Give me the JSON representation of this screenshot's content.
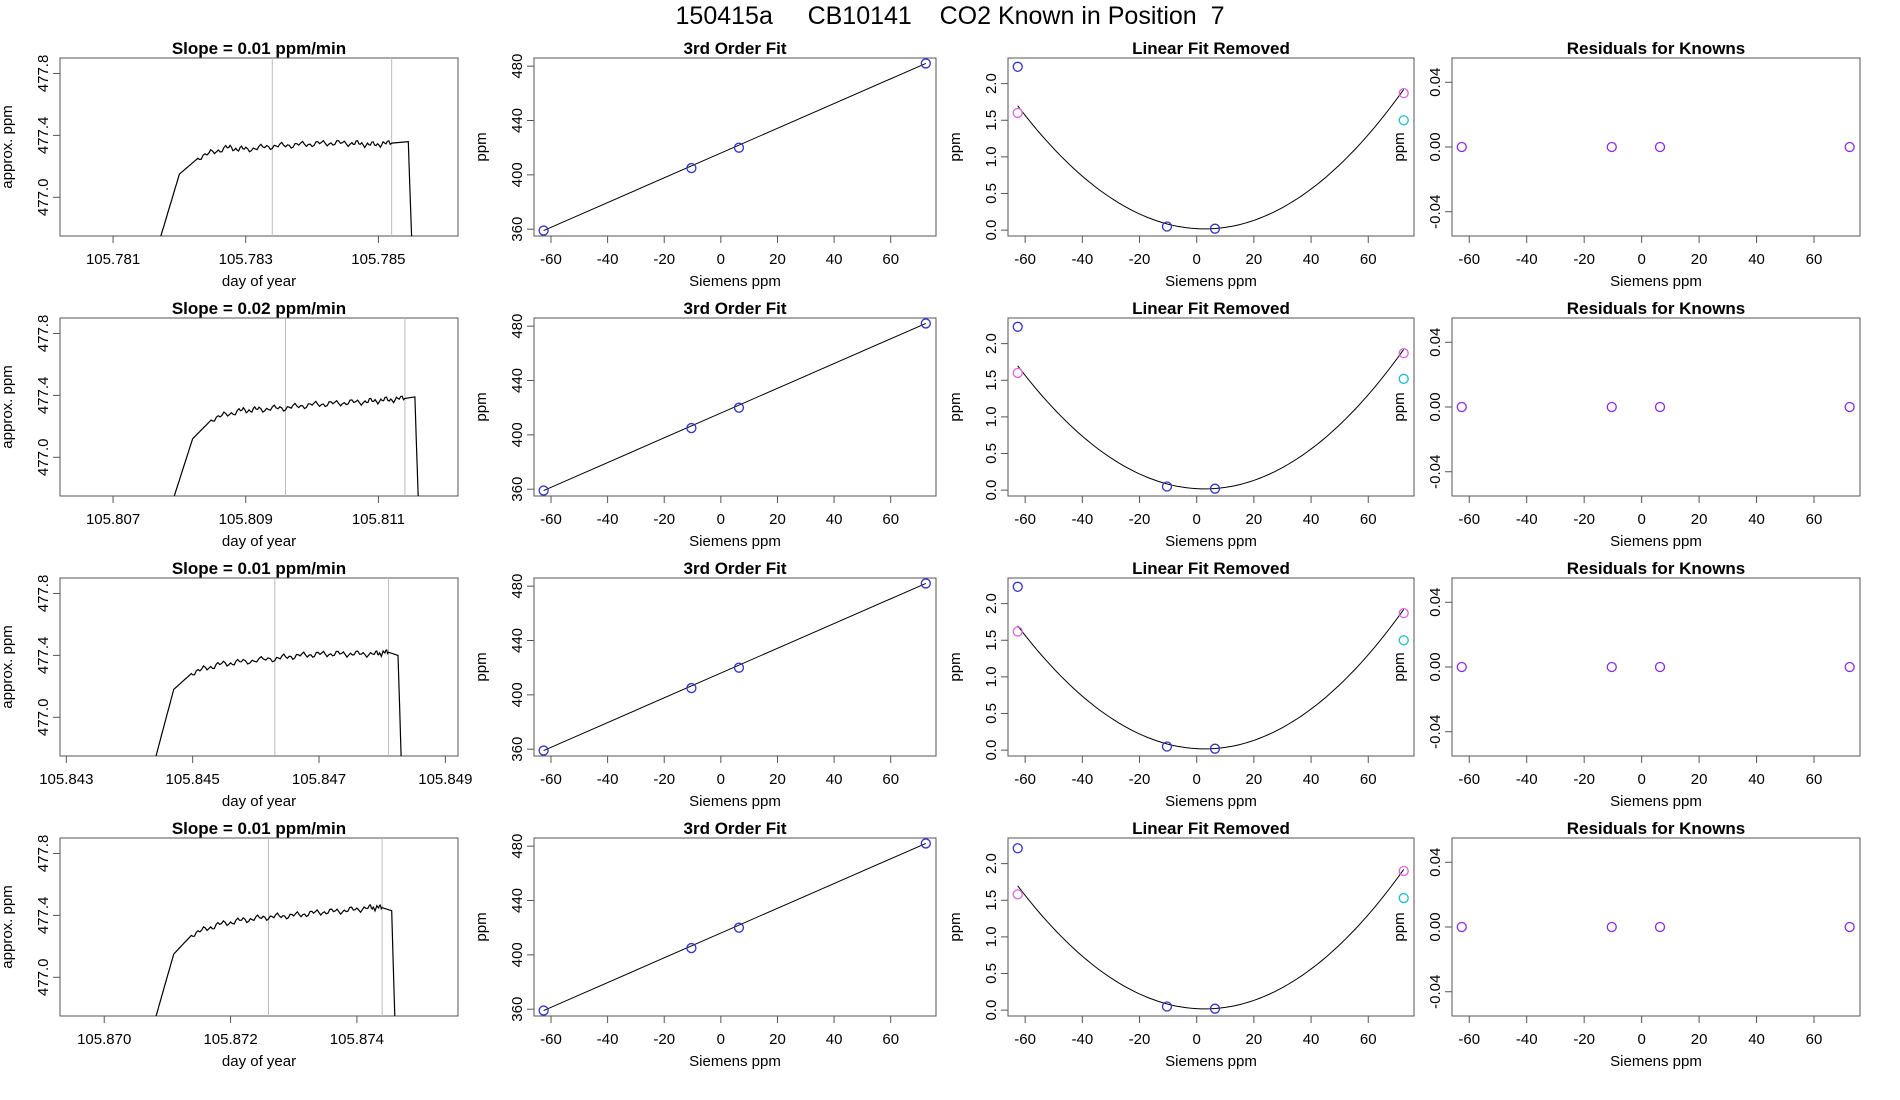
{
  "page_title": "150415a     CB10141    CO2 Known in Position  7",
  "colors": {
    "frame": "#555555",
    "trace": "#000000",
    "marker_blue": "#3333cc",
    "marker_magenta": "#dd66dd",
    "marker_cyan": "#22bbcc",
    "marker_purple": "#8a2be2",
    "gridline": "#bbbbbb"
  },
  "chart_data": [
    {
      "row": 1,
      "type": "line",
      "title": "Slope =  0.01  ppm/min",
      "xlabel": "day of year",
      "ylabel": "approx. ppm",
      "x_ticks": [
        "105.781",
        "105.783",
        "105.785"
      ],
      "y_ticks": [
        "477.0",
        "477.4",
        "477.8"
      ],
      "xlim": [
        105.7802,
        105.7862
      ],
      "ylim": [
        476.75,
        477.9
      ],
      "vlines": [
        105.7834,
        105.7852
      ],
      "series": [
        {
          "x": [
            105.7817,
            105.782,
            105.7823,
            105.7827,
            105.783,
            105.7834,
            105.7838,
            105.7842,
            105.7846,
            105.7849,
            105.7852,
            105.78545,
            105.7855
          ],
          "y": [
            476.72,
            477.15,
            477.26,
            477.32,
            477.31,
            477.33,
            477.34,
            477.35,
            477.35,
            477.34,
            477.35,
            477.36,
            476.75
          ]
        }
      ]
    },
    {
      "row": 1,
      "type": "scatter",
      "title": "3rd Order Fit",
      "xlabel": "Siemens ppm",
      "ylabel": "ppm",
      "x_ticks": [
        "-60",
        "-40",
        "-20",
        "0",
        "20",
        "40",
        "60"
      ],
      "y_ticks": [
        "360",
        "400",
        "440",
        "480"
      ],
      "xlim": [
        -66,
        76
      ],
      "ylim": [
        355,
        486
      ],
      "points": [
        {
          "x": -62.6,
          "y": 359
        },
        {
          "x": -10.4,
          "y": 405
        },
        {
          "x": 6.4,
          "y": 420
        },
        {
          "x": 72.4,
          "y": 482
        }
      ],
      "line": [
        {
          "x": -62.6,
          "y": 359
        },
        {
          "x": 72.4,
          "y": 482
        }
      ]
    },
    {
      "row": 1,
      "type": "scatter",
      "title": "Linear Fit Removed",
      "xlabel": "Siemens ppm",
      "ylabel": "ppm",
      "x_ticks": [
        "-60",
        "-40",
        "-20",
        "0",
        "20",
        "40",
        "60"
      ],
      "y_ticks": [
        "0.0",
        "0.5",
        "1.0",
        "1.5",
        "2.0"
      ],
      "xlim": [
        -66,
        76
      ],
      "ylim": [
        -0.08,
        2.35
      ],
      "points": [
        {
          "x": -62.6,
          "y": 2.23,
          "c": "marker_blue"
        },
        {
          "x": -62.6,
          "y": 1.6,
          "c": "marker_magenta"
        },
        {
          "x": -10.4,
          "y": 0.05,
          "c": "marker_blue"
        },
        {
          "x": 6.4,
          "y": 0.02,
          "c": "marker_blue"
        },
        {
          "x": 72.4,
          "y": 1.87,
          "c": "marker_magenta"
        },
        {
          "x": 72.4,
          "y": 1.5,
          "c": "marker_cyan"
        }
      ],
      "curve": {
        "a": 0.000393,
        "b": -0.0022,
        "c": 0.02,
        "from": -62.6,
        "to": 72.4
      }
    },
    {
      "row": 1,
      "type": "scatter",
      "title": "Residuals for Knowns",
      "xlabel": "Siemens ppm",
      "ylabel": "ppm",
      "x_ticks": [
        "-60",
        "-40",
        "-20",
        "0",
        "20",
        "40",
        "60"
      ],
      "y_ticks": [
        "-0.04",
        "0.00",
        "0.04"
      ],
      "xlim": [
        -66,
        76
      ],
      "ylim": [
        -0.055,
        0.055
      ],
      "points": [
        {
          "x": -62.6,
          "y": 0
        },
        {
          "x": -10.4,
          "y": 0
        },
        {
          "x": 6.4,
          "y": 0
        },
        {
          "x": 72.4,
          "y": 0
        }
      ]
    },
    {
      "row": 2,
      "type": "line",
      "title": "Slope =  0.02  ppm/min",
      "xlabel": "day of year",
      "ylabel": "approx. ppm",
      "x_ticks": [
        "105.807",
        "105.809",
        "105.811"
      ],
      "y_ticks": [
        "477.0",
        "477.4",
        "477.8"
      ],
      "xlim": [
        105.8062,
        105.8122
      ],
      "ylim": [
        476.75,
        477.9
      ],
      "vlines": [
        105.8096,
        105.8114
      ],
      "series": [
        {
          "x": [
            105.8079,
            105.8082,
            105.8085,
            105.8089,
            105.8092,
            105.8096,
            105.81,
            105.8104,
            105.8108,
            105.8111,
            105.8114,
            105.81155,
            105.8116
          ],
          "y": [
            476.72,
            477.12,
            477.25,
            477.3,
            477.31,
            477.32,
            477.34,
            477.35,
            477.36,
            477.37,
            477.38,
            477.39,
            476.75
          ]
        }
      ]
    },
    {
      "row": 2,
      "type": "scatter",
      "title": "3rd Order Fit",
      "xlabel": "Siemens ppm",
      "ylabel": "ppm",
      "x_ticks": [
        "-60",
        "-40",
        "-20",
        "0",
        "20",
        "40",
        "60"
      ],
      "y_ticks": [
        "360",
        "400",
        "440",
        "480"
      ],
      "xlim": [
        -66,
        76
      ],
      "ylim": [
        355,
        486
      ],
      "points": [
        {
          "x": -62.6,
          "y": 359
        },
        {
          "x": -10.4,
          "y": 405
        },
        {
          "x": 6.4,
          "y": 420
        },
        {
          "x": 72.4,
          "y": 482
        }
      ],
      "line": [
        {
          "x": -62.6,
          "y": 359
        },
        {
          "x": 72.4,
          "y": 482
        }
      ]
    },
    {
      "row": 2,
      "type": "scatter",
      "title": "Linear Fit Removed",
      "xlabel": "Siemens ppm",
      "ylabel": "ppm",
      "x_ticks": [
        "-60",
        "-40",
        "-20",
        "0",
        "20",
        "40",
        "60"
      ],
      "y_ticks": [
        "0.0",
        "0.5",
        "1.0",
        "1.5",
        "2.0"
      ],
      "xlim": [
        -66,
        76
      ],
      "ylim": [
        -0.08,
        2.35
      ],
      "points": [
        {
          "x": -62.6,
          "y": 2.23,
          "c": "marker_blue"
        },
        {
          "x": -62.6,
          "y": 1.6,
          "c": "marker_magenta"
        },
        {
          "x": -10.4,
          "y": 0.05,
          "c": "marker_blue"
        },
        {
          "x": 6.4,
          "y": 0.02,
          "c": "marker_blue"
        },
        {
          "x": 72.4,
          "y": 1.87,
          "c": "marker_magenta"
        },
        {
          "x": 72.4,
          "y": 1.52,
          "c": "marker_cyan"
        }
      ],
      "curve": {
        "a": 0.000393,
        "b": -0.0022,
        "c": 0.02,
        "from": -62.6,
        "to": 72.4
      }
    },
    {
      "row": 2,
      "type": "scatter",
      "title": "Residuals for Knowns",
      "xlabel": "Siemens ppm",
      "ylabel": "ppm",
      "x_ticks": [
        "-60",
        "-40",
        "-20",
        "0",
        "20",
        "40",
        "60"
      ],
      "y_ticks": [
        "-0.04",
        "0.00",
        "0.04"
      ],
      "xlim": [
        -66,
        76
      ],
      "ylim": [
        -0.055,
        0.055
      ],
      "points": [
        {
          "x": -62.6,
          "y": 0
        },
        {
          "x": -10.4,
          "y": 0
        },
        {
          "x": 6.4,
          "y": 0
        },
        {
          "x": 72.4,
          "y": 0
        }
      ]
    },
    {
      "row": 3,
      "type": "line",
      "title": "Slope =  0.01  ppm/min",
      "xlabel": "day of year",
      "ylabel": "approx. ppm",
      "x_ticks": [
        "105.843",
        "105.845",
        "105.847",
        "105.849"
      ],
      "y_ticks": [
        "477.0",
        "477.4",
        "477.8"
      ],
      "xlim": [
        105.8429,
        105.8492
      ],
      "ylim": [
        476.75,
        477.9
      ],
      "vlines": [
        105.8463,
        105.8481
      ],
      "series": [
        {
          "x": [
            105.8444,
            105.8447,
            105.845,
            105.8454,
            105.8458,
            105.8463,
            105.8467,
            105.8471,
            105.8475,
            105.8479,
            105.8481,
            105.84825,
            105.8483
          ],
          "y": [
            476.72,
            477.18,
            477.29,
            477.34,
            477.36,
            477.38,
            477.4,
            477.41,
            477.41,
            477.41,
            477.42,
            477.4,
            476.75
          ]
        }
      ]
    },
    {
      "row": 3,
      "type": "scatter",
      "title": "3rd Order Fit",
      "xlabel": "Siemens ppm",
      "ylabel": "ppm",
      "x_ticks": [
        "-60",
        "-40",
        "-20",
        "0",
        "20",
        "40",
        "60"
      ],
      "y_ticks": [
        "360",
        "400",
        "440",
        "480"
      ],
      "xlim": [
        -66,
        76
      ],
      "ylim": [
        355,
        486
      ],
      "points": [
        {
          "x": -62.6,
          "y": 359
        },
        {
          "x": -10.4,
          "y": 405
        },
        {
          "x": 6.4,
          "y": 420
        },
        {
          "x": 72.4,
          "y": 482
        }
      ],
      "line": [
        {
          "x": -62.6,
          "y": 359
        },
        {
          "x": 72.4,
          "y": 482
        }
      ]
    },
    {
      "row": 3,
      "type": "scatter",
      "title": "Linear Fit Removed",
      "xlabel": "Siemens ppm",
      "ylabel": "ppm",
      "x_ticks": [
        "-60",
        "-40",
        "-20",
        "0",
        "20",
        "40",
        "60"
      ],
      "y_ticks": [
        "0.0",
        "0.5",
        "1.0",
        "1.5",
        "2.0"
      ],
      "xlim": [
        -66,
        76
      ],
      "ylim": [
        -0.08,
        2.35
      ],
      "points": [
        {
          "x": -62.6,
          "y": 2.23,
          "c": "marker_blue"
        },
        {
          "x": -62.6,
          "y": 1.62,
          "c": "marker_magenta"
        },
        {
          "x": -10.4,
          "y": 0.05,
          "c": "marker_blue"
        },
        {
          "x": 6.4,
          "y": 0.02,
          "c": "marker_blue"
        },
        {
          "x": 72.4,
          "y": 1.87,
          "c": "marker_magenta"
        },
        {
          "x": 72.4,
          "y": 1.5,
          "c": "marker_cyan"
        }
      ],
      "curve": {
        "a": 0.000393,
        "b": -0.0022,
        "c": 0.02,
        "from": -62.6,
        "to": 72.4
      }
    },
    {
      "row": 3,
      "type": "scatter",
      "title": "Residuals for Knowns",
      "xlabel": "Siemens ppm",
      "ylabel": "ppm",
      "x_ticks": [
        "-60",
        "-40",
        "-20",
        "0",
        "20",
        "40",
        "60"
      ],
      "y_ticks": [
        "-0.04",
        "0.00",
        "0.04"
      ],
      "xlim": [
        -66,
        76
      ],
      "ylim": [
        -0.055,
        0.055
      ],
      "points": [
        {
          "x": -62.6,
          "y": 0
        },
        {
          "x": -10.4,
          "y": 0
        },
        {
          "x": 6.4,
          "y": 0
        },
        {
          "x": 72.4,
          "y": 0
        }
      ]
    },
    {
      "row": 4,
      "type": "line",
      "title": "Slope =  0.01  ppm/min",
      "xlabel": "day of year",
      "ylabel": "approx. ppm",
      "x_ticks": [
        "105.870",
        "105.872",
        "105.874"
      ],
      "y_ticks": [
        "477.0",
        "477.4",
        "477.8"
      ],
      "xlim": [
        105.8693,
        105.8756
      ],
      "ylim": [
        476.75,
        477.9
      ],
      "vlines": [
        105.8726,
        105.8744
      ],
      "series": [
        {
          "x": [
            105.8708,
            105.8711,
            105.8714,
            105.8718,
            105.8722,
            105.8726,
            105.873,
            105.8734,
            105.8738,
            105.8742,
            105.8744,
            105.87455,
            105.8746
          ],
          "y": [
            476.72,
            477.15,
            477.28,
            477.34,
            477.37,
            477.39,
            477.4,
            477.42,
            477.43,
            477.45,
            477.45,
            477.43,
            476.75
          ]
        }
      ]
    },
    {
      "row": 4,
      "type": "scatter",
      "title": "3rd Order Fit",
      "xlabel": "Siemens ppm",
      "ylabel": "ppm",
      "x_ticks": [
        "-60",
        "-40",
        "-20",
        "0",
        "20",
        "40",
        "60"
      ],
      "y_ticks": [
        "360",
        "400",
        "440",
        "480"
      ],
      "xlim": [
        -66,
        76
      ],
      "ylim": [
        355,
        486
      ],
      "points": [
        {
          "x": -62.6,
          "y": 359
        },
        {
          "x": -10.4,
          "y": 405
        },
        {
          "x": 6.4,
          "y": 420
        },
        {
          "x": 72.4,
          "y": 482
        }
      ],
      "line": [
        {
          "x": -62.6,
          "y": 359
        },
        {
          "x": 72.4,
          "y": 482
        }
      ]
    },
    {
      "row": 4,
      "type": "scatter",
      "title": "Linear Fit Removed",
      "xlabel": "Siemens ppm",
      "ylabel": "ppm",
      "x_ticks": [
        "-60",
        "-40",
        "-20",
        "0",
        "20",
        "40",
        "60"
      ],
      "y_ticks": [
        "0.0",
        "0.5",
        "1.0",
        "1.5",
        "2.0"
      ],
      "xlim": [
        -66,
        76
      ],
      "ylim": [
        -0.08,
        2.35
      ],
      "points": [
        {
          "x": -62.6,
          "y": 2.21,
          "c": "marker_blue"
        },
        {
          "x": -62.6,
          "y": 1.58,
          "c": "marker_magenta"
        },
        {
          "x": -10.4,
          "y": 0.05,
          "c": "marker_blue"
        },
        {
          "x": 6.4,
          "y": 0.02,
          "c": "marker_blue"
        },
        {
          "x": 72.4,
          "y": 1.9,
          "c": "marker_magenta"
        },
        {
          "x": 72.4,
          "y": 1.53,
          "c": "marker_cyan"
        }
      ],
      "curve": {
        "a": 0.000393,
        "b": -0.0022,
        "c": 0.02,
        "from": -62.6,
        "to": 72.4
      }
    },
    {
      "row": 4,
      "type": "scatter",
      "title": "Residuals for Knowns",
      "xlabel": "Siemens ppm",
      "ylabel": "ppm",
      "x_ticks": [
        "-60",
        "-40",
        "-20",
        "0",
        "20",
        "40",
        "60"
      ],
      "y_ticks": [
        "-0.04",
        "0.00",
        "0.04"
      ],
      "xlim": [
        -66,
        76
      ],
      "ylim": [
        -0.055,
        0.055
      ],
      "points": [
        {
          "x": -62.6,
          "y": 0
        },
        {
          "x": -10.4,
          "y": 0
        },
        {
          "x": 6.4,
          "y": 0
        },
        {
          "x": 72.4,
          "y": 0
        }
      ]
    }
  ]
}
